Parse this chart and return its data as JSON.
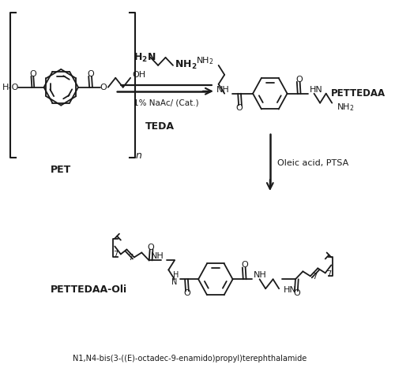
{
  "background_color": "#ffffff",
  "line_color": "#1a1a1a",
  "text_color": "#1a1a1a",
  "figsize": [
    5.0,
    4.72
  ],
  "dpi": 100,
  "lw": 1.3,
  "pet_label": "PET",
  "teda_label": "TEDA",
  "pettedaa_label": "PETTEDAA",
  "pettedaa_oli_label": "PETTEDAA-Oli",
  "reagent1_top": "H₂N          NH₂",
  "catalyst": "1% NaAc/ (Cat.)",
  "reagent2": "Oleic acid, PTSA",
  "iupac": "N1,N4-bis(3-((E)-octadec-9-enamido)propyl)terephthalamide"
}
